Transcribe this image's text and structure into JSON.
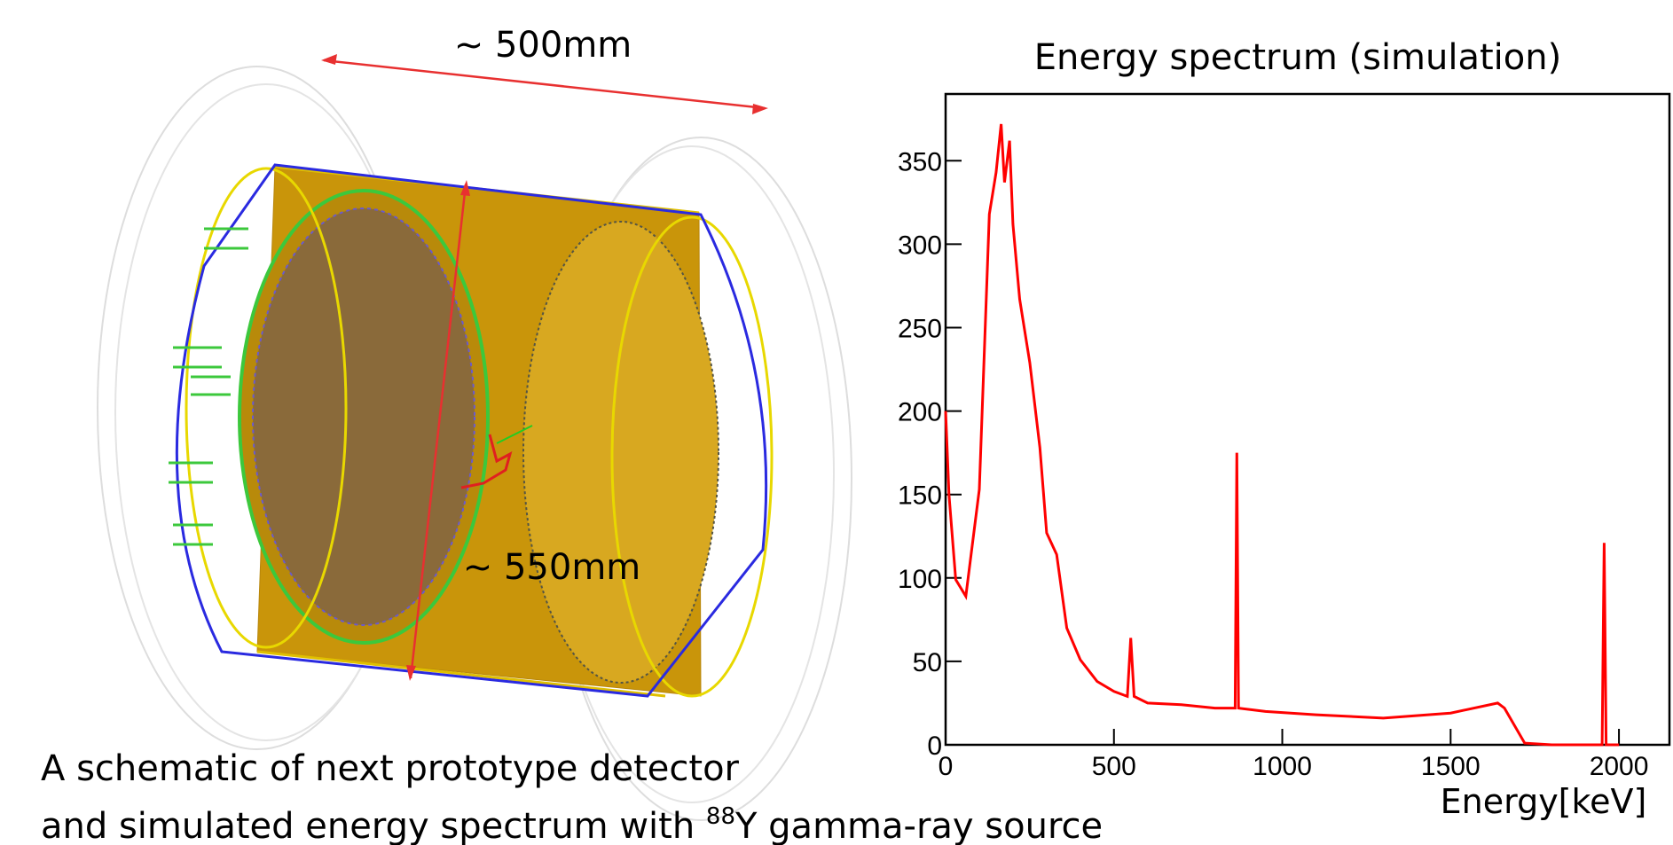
{
  "schematic": {
    "length_label": "~ 500mm",
    "diameter_label": "~ 550mm"
  },
  "caption": {
    "line1": "A schematic of next prototype detector",
    "line2_start": "and simulated energy spectrum with ",
    "line2_sup": "88",
    "line2_end": "Y gamma-ray source"
  },
  "chart_data": {
    "type": "line",
    "title": "Energy spectrum (simulation)",
    "x_label": "Energy[keV]",
    "color": "#ff0000",
    "x": [
      0,
      10,
      30,
      60,
      100,
      130,
      150,
      165,
      175,
      190,
      200,
      220,
      250,
      280,
      300,
      330,
      360,
      400,
      450,
      500,
      540,
      550,
      560,
      600,
      700,
      800,
      860,
      865,
      870,
      950,
      1100,
      1300,
      1500,
      1640,
      1660,
      1720,
      1800,
      1950,
      1956,
      1962,
      2000
    ],
    "values": [
      200,
      150,
      99,
      89,
      153,
      318,
      343,
      372,
      337,
      362,
      312,
      267,
      229,
      178,
      127,
      114,
      70,
      51,
      38,
      32,
      29,
      64,
      29,
      25,
      24,
      22,
      22,
      175,
      22,
      20,
      18,
      16,
      19,
      25,
      22,
      1,
      0,
      0,
      121,
      0,
      0
    ],
    "xlim": [
      0,
      2150
    ],
    "ylim": [
      0,
      390
    ],
    "xticks": [
      0,
      500,
      1000,
      1500,
      2000
    ],
    "yticks": [
      0,
      50,
      100,
      150,
      200,
      250,
      300,
      350
    ]
  }
}
